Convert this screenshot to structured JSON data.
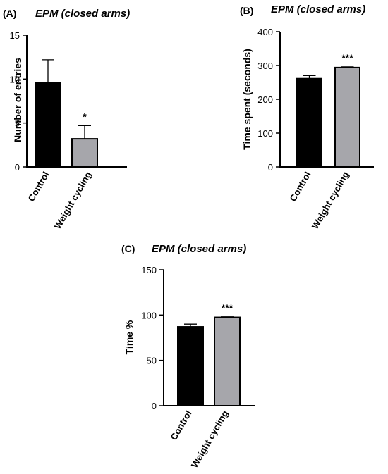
{
  "chart_data": [
    {
      "type": "bar",
      "panel_label": "(A)",
      "title": "EPM (closed arms)",
      "xlabel": "",
      "ylabel": "Number of entries",
      "categories": [
        "Control",
        "Weight cycling"
      ],
      "values": [
        9.6,
        3.2
      ],
      "errors": [
        2.6,
        1.5
      ],
      "significance": [
        "",
        "*"
      ],
      "bar_colors": [
        "#000000",
        "#a6a6ab"
      ],
      "ylim": [
        0,
        15
      ],
      "yticks": [
        0,
        5,
        10,
        15
      ],
      "ytick_labels": [
        "0",
        "5",
        "10",
        "15"
      ],
      "grid": false,
      "legend": "none"
    },
    {
      "type": "bar",
      "panel_label": "(B)",
      "title": "EPM (closed arms)",
      "xlabel": "",
      "ylabel": "Time spent (seconds)",
      "categories": [
        "Control",
        "Weight cycling"
      ],
      "values": [
        261,
        294
      ],
      "errors": [
        9,
        2
      ],
      "significance": [
        "",
        "***"
      ],
      "bar_colors": [
        "#000000",
        "#a6a6ab"
      ],
      "ylim": [
        0,
        400
      ],
      "yticks": [
        0,
        100,
        200,
        300,
        400
      ],
      "ytick_labels": [
        "0",
        "100",
        "200",
        "300",
        "400"
      ],
      "grid": false,
      "legend": "none"
    },
    {
      "type": "bar",
      "panel_label": "(C)",
      "title": "EPM (closed arms)",
      "xlabel": "",
      "ylabel": "Time %",
      "categories": [
        "Control",
        "Weight cycling"
      ],
      "values": [
        87,
        97.5
      ],
      "errors": [
        3,
        0.6
      ],
      "significance": [
        "",
        "***"
      ],
      "bar_colors": [
        "#000000",
        "#a6a6ab"
      ],
      "ylim": [
        0,
        150
      ],
      "yticks": [
        0,
        50,
        100,
        150
      ],
      "ytick_labels": [
        "0",
        "50",
        "100",
        "150"
      ],
      "grid": false,
      "legend": "none"
    }
  ]
}
